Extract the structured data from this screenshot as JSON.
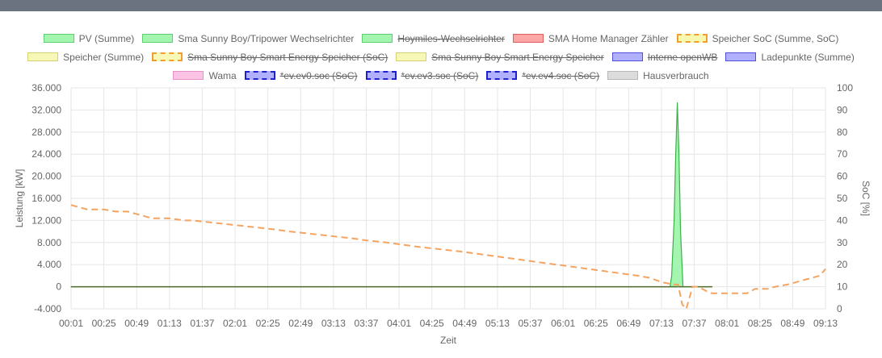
{
  "chart_data": {
    "type": "line",
    "xlabel": "Zeit",
    "ylabel_left": "Leistung [kW]",
    "ylabel_right": "SoC [%]",
    "ylim_left": [
      -4000,
      36000
    ],
    "ylim_right": [
      0,
      100
    ],
    "y_ticks_left": [
      "36.000",
      "32.000",
      "28.000",
      "24.000",
      "20.000",
      "16.000",
      "12.000",
      "8.000",
      "4.000",
      "0",
      "-4.000"
    ],
    "y_ticks_right": [
      "100",
      "90",
      "80",
      "70",
      "60",
      "50",
      "40",
      "30",
      "20",
      "10",
      "0"
    ],
    "x_ticks": [
      "00:01",
      "00:25",
      "00:49",
      "01:13",
      "01:37",
      "02:01",
      "02:25",
      "02:49",
      "03:13",
      "03:37",
      "04:01",
      "04:25",
      "04:49",
      "05:13",
      "05:37",
      "06:01",
      "06:25",
      "06:49",
      "07:13",
      "07:37",
      "08:01",
      "08:25",
      "08:49",
      "09:13"
    ],
    "grid": true,
    "legend_position": "top",
    "legend_rows": [
      [
        {
          "label": "PV (Summe)",
          "fill": "#a4f5b0",
          "border": "#5ccf6e",
          "style": "solid",
          "hidden": false
        },
        {
          "label": "Sma Sunny Boy/Tripower Wechselrichter",
          "fill": "#a4f5b0",
          "border": "#5ccf6e",
          "style": "solid",
          "hidden": false
        },
        {
          "label": "Hoymiles-Wechselrichter",
          "fill": "#a4f5b0",
          "border": "#5ccf6e",
          "style": "solid",
          "hidden": true
        },
        {
          "label": "SMA Home Manager Zähler",
          "fill": "#fca6a6",
          "border": "#e06060",
          "style": "solid",
          "hidden": false
        },
        {
          "label": "Speicher SoC (Summe, SoC)",
          "fill": "#f7f7b0",
          "border": "#f0a030",
          "style": "dashed",
          "hidden": false
        }
      ],
      [
        {
          "label": "Speicher (Summe)",
          "fill": "#f7f7b8",
          "border": "#d8d070",
          "style": "solid",
          "hidden": false
        },
        {
          "label": "Sma Sunny Boy Smart Energy Speicher (SoC)",
          "fill": "#f7f7b8",
          "border": "#f0a030",
          "style": "dashed",
          "hidden": true
        },
        {
          "label": "Sma Sunny Boy Smart Energy Speicher",
          "fill": "#f7f7b8",
          "border": "#d8d070",
          "style": "solid",
          "hidden": true
        },
        {
          "label": "Interne openWB",
          "fill": "#b0b0ff",
          "border": "#5050e0",
          "style": "solid",
          "hidden": true
        },
        {
          "label": "Ladepunkte (Summe)",
          "fill": "#b0b0ff",
          "border": "#5050e0",
          "style": "solid",
          "hidden": false
        }
      ],
      [
        {
          "label": "Wama",
          "fill": "#fbc4e4",
          "border": "#e890c8",
          "style": "solid",
          "hidden": false
        },
        {
          "label": "*ev.ev0.soc (SoC)",
          "fill": "#b0b0ff",
          "border": "#2020d0",
          "style": "dashed",
          "hidden": true
        },
        {
          "label": "*ev.ev3.soc (SoC)",
          "fill": "#b0b0ff",
          "border": "#2020d0",
          "style": "dashed",
          "hidden": true
        },
        {
          "label": "*ev.ev4.soc (SoC)",
          "fill": "#b0b0ff",
          "border": "#2020d0",
          "style": "dashed",
          "hidden": true
        },
        {
          "label": "Hausverbrauch",
          "fill": "#dcdcdc",
          "border": "#b8b8b8",
          "style": "solid",
          "hidden": false
        }
      ]
    ],
    "series": [
      {
        "name": "PV (Summe)",
        "axis": "left",
        "color": "#3cb04a",
        "fill": "#a4f5b0",
        "style": "area",
        "points": [
          [
            0,
            0
          ],
          [
            740,
            0
          ],
          [
            742,
            2000
          ],
          [
            745,
            12000
          ],
          [
            747,
            24000
          ],
          [
            749,
            33300
          ],
          [
            751,
            24000
          ],
          [
            753,
            10000
          ],
          [
            756,
            0
          ],
          [
            792,
            0
          ]
        ]
      },
      {
        "name": "SMA Home Manager Zähler",
        "axis": "left",
        "color": "#556b2f",
        "style": "line",
        "points": [
          [
            0,
            0
          ],
          [
            792,
            0
          ]
        ]
      },
      {
        "name": "Speicher SoC (Summe, SoC)",
        "axis": "right",
        "color": "#f4a460",
        "style": "dashed",
        "points": [
          [
            0,
            47
          ],
          [
            10,
            46
          ],
          [
            20,
            45
          ],
          [
            40,
            45
          ],
          [
            55,
            44
          ],
          [
            70,
            44
          ],
          [
            80,
            43
          ],
          [
            100,
            41
          ],
          [
            120,
            41
          ],
          [
            140,
            40
          ],
          [
            150,
            40
          ],
          [
            175,
            39
          ],
          [
            200,
            38
          ],
          [
            225,
            37
          ],
          [
            250,
            36
          ],
          [
            270,
            35
          ],
          [
            295,
            34
          ],
          [
            320,
            33
          ],
          [
            345,
            32
          ],
          [
            365,
            31
          ],
          [
            390,
            30
          ],
          [
            410,
            29
          ],
          [
            430,
            28
          ],
          [
            455,
            27
          ],
          [
            480,
            26
          ],
          [
            500,
            25
          ],
          [
            520,
            24
          ],
          [
            540,
            23
          ],
          [
            560,
            22
          ],
          [
            580,
            21
          ],
          [
            600,
            20
          ],
          [
            620,
            19
          ],
          [
            640,
            18
          ],
          [
            660,
            17
          ],
          [
            680,
            16
          ],
          [
            700,
            15
          ],
          [
            715,
            14
          ],
          [
            730,
            12
          ],
          [
            745,
            11
          ],
          [
            750,
            11
          ],
          [
            755,
            2
          ],
          [
            760,
            0
          ],
          [
            768,
            10
          ],
          [
            775,
            10
          ],
          [
            785,
            8
          ],
          [
            792,
            7
          ],
          [
            800,
            7
          ],
          [
            820,
            7
          ],
          [
            835,
            7
          ],
          [
            845,
            9
          ],
          [
            860,
            9
          ],
          [
            870,
            10
          ],
          [
            885,
            11
          ],
          [
            905,
            13
          ],
          [
            925,
            15
          ],
          [
            932,
            18
          ]
        ]
      }
    ]
  }
}
